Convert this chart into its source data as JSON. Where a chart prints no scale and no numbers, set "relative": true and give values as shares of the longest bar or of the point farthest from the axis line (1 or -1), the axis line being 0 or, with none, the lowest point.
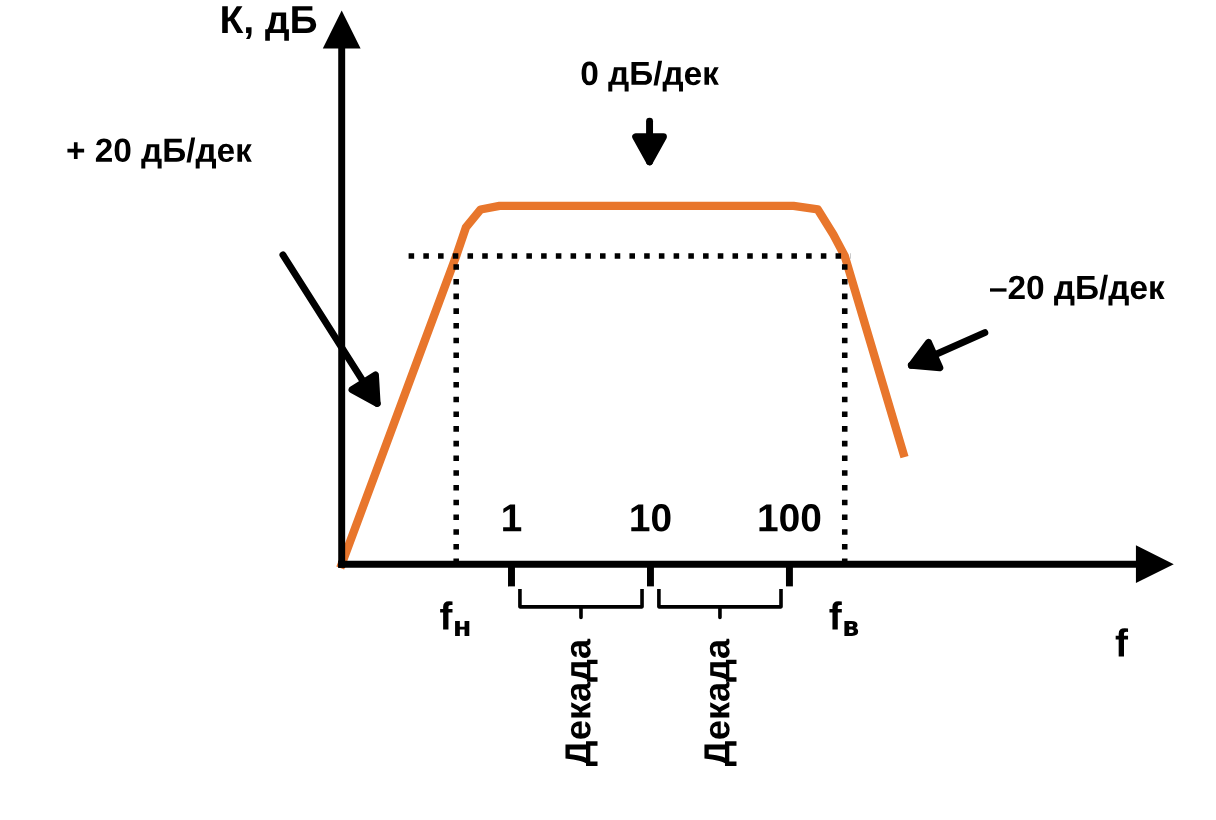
{
  "chart_data": {
    "type": "line",
    "relative": true,
    "ylabel": "К, дБ",
    "xlabel": "f",
    "log": "x",
    "xlim": [
      0.06,
      42000
    ],
    "xticks": [
      1,
      10,
      100
    ],
    "series": [
      {
        "color": "#e8762c",
        "x": [
          0.06,
          0.4,
          0.47,
          0.6,
          0.82,
          107,
          160,
          207,
          250,
          660
        ],
        "values": [
          0,
          0.86,
          0.94,
          0.99,
          1,
          1,
          0.99,
          0.92,
          0.86,
          0.31
        ]
      }
    ],
    "ref_lines": [
      {
        "axis": "y",
        "value": 0.86,
        "color": "#000000",
        "line_style": "dotted"
      },
      {
        "axis": "x",
        "value": 0.4,
        "label": "f$_{н}$",
        "color": "#000000",
        "line_style": "dotted"
      },
      {
        "axis": "x",
        "value": 250,
        "label": "f$_{в}$",
        "color": "#000000",
        "line_style": "dotted"
      }
    ],
    "annotations": [
      "+ 20 дБ/дек",
      "0 дБ/дек",
      "–20 дБ/дек",
      "Декада",
      "Декада"
    ],
    "grid": false,
    "legend": false,
    "marker": "none",
    "line_style": "solid"
  }
}
